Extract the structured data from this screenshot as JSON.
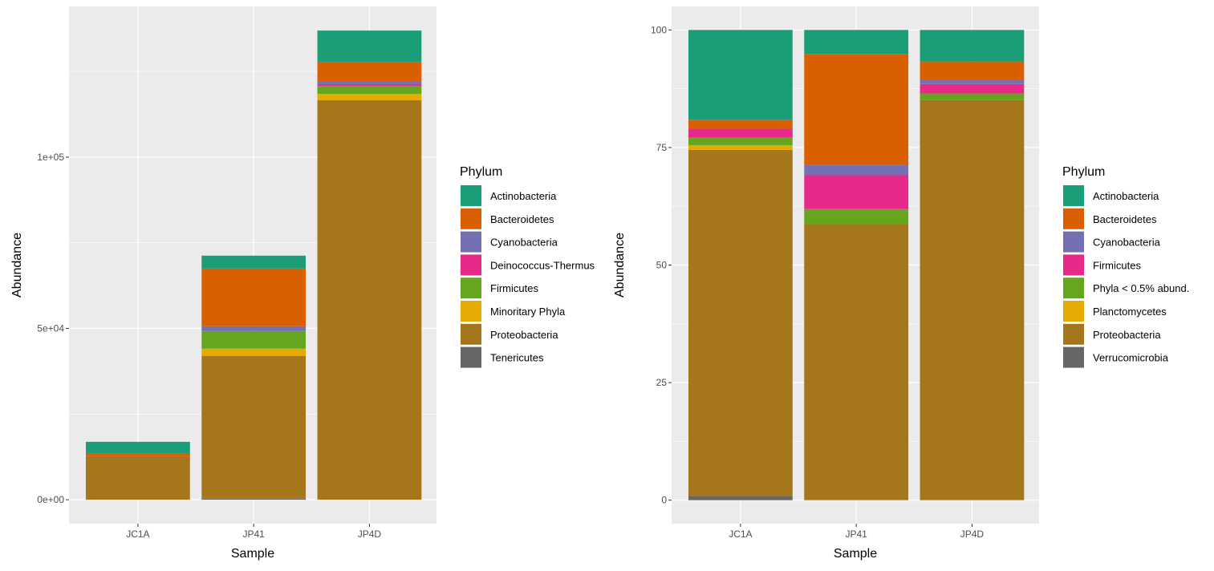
{
  "chart_data": [
    {
      "type": "bar",
      "stacked": true,
      "xlabel": "Sample",
      "ylabel": "Abundance",
      "categories": [
        "JC1A",
        "JP41",
        "JP4D"
      ],
      "ylim": [
        -7000,
        144000
      ],
      "yticks": [
        0,
        50000,
        100000
      ],
      "ytick_labels": [
        "0e+00",
        "5e+04",
        "1e+05"
      ],
      "grid": true,
      "legend": {
        "title": "Phylum",
        "placement": "right"
      },
      "series": [
        {
          "name": "Tenericutes",
          "color": "#666666",
          "values": [
            0,
            300,
            0
          ]
        },
        {
          "name": "Proteobacteria",
          "color": "#A6761D",
          "values": [
            12700,
            41700,
            116600
          ]
        },
        {
          "name": "Minoritary Phyla",
          "color": "#E6AB02",
          "values": [
            0,
            2100,
            1870
          ]
        },
        {
          "name": "Firmicutes",
          "color": "#66A61E",
          "values": [
            0,
            5150,
            2340
          ]
        },
        {
          "name": "Deinococcus-Thermus",
          "color": "#E7298A",
          "values": [
            0,
            0,
            470
          ]
        },
        {
          "name": "Cyanobacteria",
          "color": "#7570B3",
          "values": [
            0,
            1400,
            940
          ]
        },
        {
          "name": "Bacteroidetes",
          "color": "#D95F02",
          "values": [
            700,
            16850,
            5610
          ]
        },
        {
          "name": "Actinobacteria",
          "color": "#1B9E77",
          "values": [
            3500,
            3740,
            9120
          ]
        }
      ]
    },
    {
      "type": "bar",
      "stacked": true,
      "xlabel": "Sample",
      "ylabel": "Abundance",
      "categories": [
        "JC1A",
        "JP41",
        "JP4D"
      ],
      "ylim": [
        -5,
        105
      ],
      "yticks": [
        0,
        25,
        50,
        75,
        100
      ],
      "ytick_labels": [
        "0",
        "25",
        "50",
        "75",
        "100"
      ],
      "grid": true,
      "legend": {
        "title": "Phylum",
        "placement": "right"
      },
      "series": [
        {
          "name": "Verrucomicrobia",
          "color": "#666666",
          "values": [
            0.9,
            0,
            0
          ]
        },
        {
          "name": "Proteobacteria",
          "color": "#A6761D",
          "values": [
            73.6,
            58.7,
            85.1
          ]
        },
        {
          "name": "Planctomycetes",
          "color": "#E6AB02",
          "values": [
            1.0,
            0,
            0
          ]
        },
        {
          "name": "Phyla < 0.5% abund.",
          "color": "#66A61E",
          "values": [
            1.7,
            3.2,
            1.4
          ]
        },
        {
          "name": "Firmicutes",
          "color": "#E7298A",
          "values": [
            1.8,
            7.2,
            2.0
          ]
        },
        {
          "name": "Cyanobacteria",
          "color": "#7570B3",
          "values": [
            0,
            2.2,
            0.9
          ]
        },
        {
          "name": "Bacteroidetes",
          "color": "#D95F02",
          "values": [
            1.9,
            23.6,
            3.9
          ]
        },
        {
          "name": "Actinobacteria",
          "color": "#1B9E77",
          "values": [
            19.1,
            5.1,
            6.7
          ]
        }
      ]
    }
  ]
}
